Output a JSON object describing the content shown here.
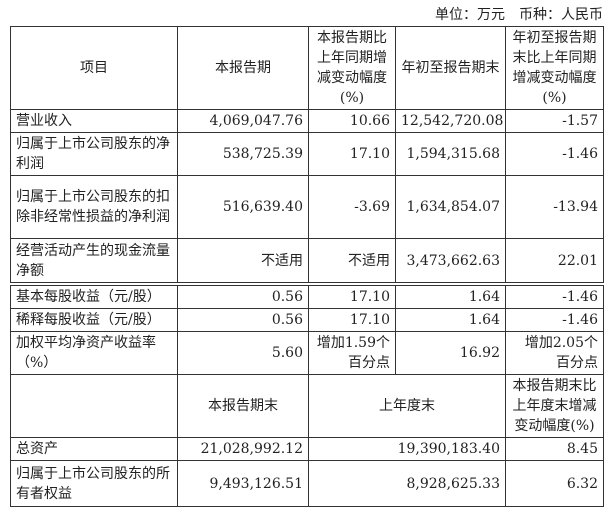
{
  "unit_note": "单位：万元　币种：人民币",
  "header": [
    "项目",
    "本报告期",
    "本报告期比上年同期增减变动幅度(%)",
    "年初至报告期末",
    "年初至报告期末比上年同期增减变动幅度(%)"
  ],
  "rows": [
    [
      "营业收入",
      "4,069,047.76",
      "10.66",
      "12,542,720.08",
      "-1.57"
    ],
    [
      "归属于上市公司股东的净利润",
      "538,725.39",
      "17.10",
      "1,594,315.68",
      "-1.46"
    ],
    [
      "归属于上市公司股东的扣除非经常性损益的净利润",
      "516,639.40",
      "-3.69",
      "1,634,854.07",
      "-13.94"
    ],
    [
      "经营活动产生的现金流量净额",
      "不适用",
      "不适用",
      "3,473,662.63",
      "22.01"
    ],
    [
      "基本每股收益（元/股）",
      "0.56",
      "17.10",
      "1.64",
      "-1.46"
    ],
    [
      "稀释每股收益（元/股）",
      "0.56",
      "17.10",
      "1.64",
      "-1.46"
    ],
    [
      "加权平均净资产收益率（%）",
      "5.60",
      "增加1.59个百分点",
      "16.92",
      "增加2.05个百分点"
    ]
  ],
  "header2": [
    "",
    "本报告期末",
    "上年度末",
    "本报告期末比上年度末增减变动幅度(%)"
  ],
  "rows2": [
    [
      "总资产",
      "21,028,992.12",
      "19,390,183.40",
      "8.45"
    ],
    [
      "归属于上市公司股东的所有者权益",
      "9,493,126.51",
      "8,928,625.33",
      "6.32"
    ]
  ]
}
